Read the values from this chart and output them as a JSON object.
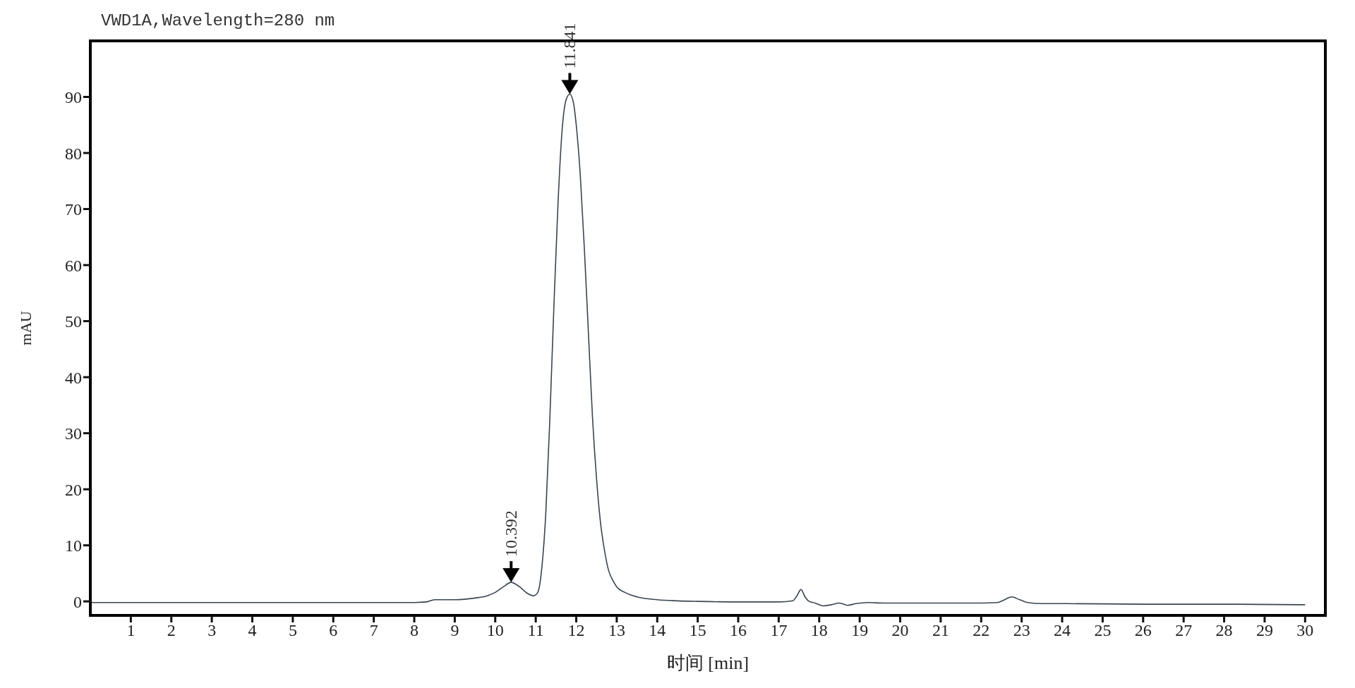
{
  "chart_data": {
    "type": "line",
    "title": "VWD1A,Wavelength=280 nm",
    "xlabel": "时间 [min]",
    "ylabel": "mAU",
    "xlim": [
      0,
      30.5
    ],
    "ylim": [
      -2.5,
      100
    ],
    "xticks": [
      1,
      2,
      3,
      4,
      5,
      6,
      7,
      8,
      9,
      10,
      11,
      12,
      13,
      14,
      15,
      16,
      17,
      18,
      19,
      20,
      21,
      22,
      23,
      24,
      25,
      26,
      27,
      28,
      29,
      30
    ],
    "yticks": [
      0,
      10,
      20,
      30,
      40,
      50,
      60,
      70,
      80,
      90
    ],
    "grid": false,
    "legend": false,
    "marker": "none",
    "line_style": "solid",
    "annotations": [
      {
        "text": "10.392",
        "x": 10.392,
        "y": 3.4
      },
      {
        "text": "11.841",
        "x": 11.841,
        "y": 90.5
      }
    ],
    "series": [
      {
        "color": "#3a4550",
        "x": [
          0,
          2,
          4,
          6,
          8,
          8.3,
          8.5,
          9,
          9.5,
          9.8,
          10,
          10.2,
          10.392,
          10.6,
          10.8,
          10.95,
          11.05,
          11.15,
          11.25,
          11.35,
          11.45,
          11.55,
          11.65,
          11.75,
          11.841,
          11.93,
          12.0,
          12.1,
          12.2,
          12.3,
          12.4,
          12.5,
          12.6,
          12.7,
          12.8,
          12.9,
          13.0,
          13.2,
          13.5,
          14,
          14.5,
          15,
          16,
          17,
          17.35,
          17.45,
          17.55,
          17.65,
          17.75,
          17.9,
          18.1,
          18.3,
          18.5,
          18.7,
          18.9,
          19.2,
          19.6,
          20,
          21,
          22,
          22.4,
          22.55,
          22.75,
          22.95,
          23.15,
          23.5,
          24,
          26,
          28,
          30
        ],
        "values": [
          -0.2,
          -0.2,
          -0.2,
          -0.2,
          -0.2,
          -0.1,
          0.3,
          0.3,
          0.6,
          1.0,
          1.6,
          2.6,
          3.4,
          2.6,
          1.4,
          1.0,
          1.6,
          6,
          16,
          33,
          53,
          71,
          84,
          89.5,
          90.5,
          89,
          85,
          76,
          63,
          48,
          33,
          22,
          14,
          9,
          5.5,
          3.8,
          2.6,
          1.6,
          0.8,
          0.3,
          0.1,
          0,
          -0.1,
          -0.1,
          0.1,
          1.0,
          2.1,
          0.8,
          0,
          -0.3,
          -0.8,
          -0.6,
          -0.3,
          -0.7,
          -0.4,
          -0.2,
          -0.3,
          -0.3,
          -0.3,
          -0.3,
          -0.2,
          0.2,
          0.8,
          0.3,
          -0.2,
          -0.4,
          -0.4,
          -0.5,
          -0.5,
          -0.6
        ]
      }
    ]
  }
}
